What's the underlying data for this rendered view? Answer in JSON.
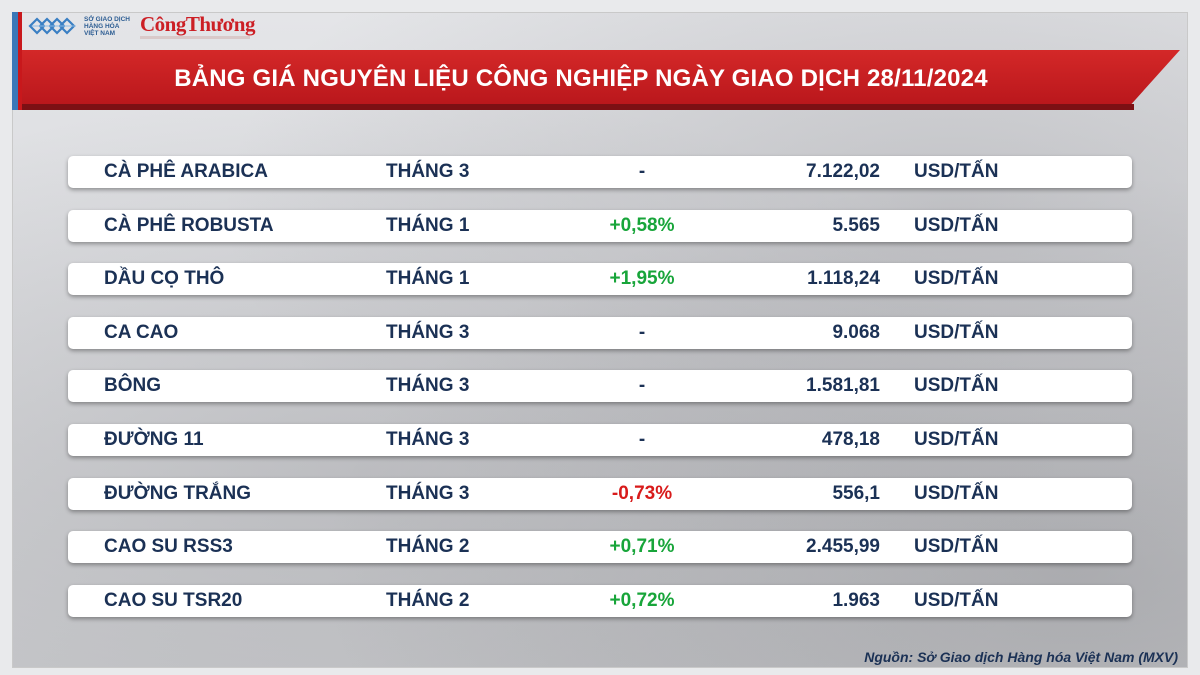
{
  "logos": {
    "exchange_name": "SỞ GIAO DỊCH HÀNG HÓA VIỆT NAM",
    "exchange_line1": "SỞ GIAO DỊCH",
    "exchange_line2": "HÀNG HÓA",
    "exchange_line3": "VIỆT NAM",
    "newspaper": "CôngThương",
    "exchange_icon": "mxv-logo-icon",
    "brand_red": "#cc1f25",
    "brand_blue": "#2d5d93"
  },
  "title": "BẢNG GIÁ NGUYÊN LIỆU CÔNG NGHIỆP NGÀY GIAO DỊCH 28/11/2024",
  "colors": {
    "banner": "#c8181c",
    "positive": "#18a53a",
    "negative": "#d81b1b",
    "text": "#1b3155"
  },
  "rows": [
    {
      "name": "CÀ PHÊ ARABICA",
      "month": "THÁNG 3",
      "change": "-",
      "direction": "neutral",
      "price": "7.122,02",
      "unit": "USD/TẤN"
    },
    {
      "name": "CÀ PHÊ ROBUSTA",
      "month": "THÁNG 1",
      "change": "+0,58%",
      "direction": "up",
      "price": "5.565",
      "unit": "USD/TẤN"
    },
    {
      "name": "DẦU CỌ THÔ",
      "month": "THÁNG 1",
      "change": "+1,95%",
      "direction": "up",
      "price": "1.118,24",
      "unit": "USD/TẤN"
    },
    {
      "name": "CA CAO",
      "month": "THÁNG 3",
      "change": "-",
      "direction": "neutral",
      "price": "9.068",
      "unit": "USD/TẤN"
    },
    {
      "name": "BÔNG",
      "month": "THÁNG 3",
      "change": "-",
      "direction": "neutral",
      "price": "1.581,81",
      "unit": "USD/TẤN"
    },
    {
      "name": "ĐƯỜNG 11",
      "month": "THÁNG 3",
      "change": "-",
      "direction": "neutral",
      "price": "478,18",
      "unit": "USD/TẤN"
    },
    {
      "name": "ĐƯỜNG TRẮNG",
      "month": "THÁNG 3",
      "change": "-0,73%",
      "direction": "down",
      "price": "556,1",
      "unit": "USD/TẤN"
    },
    {
      "name": "CAO SU RSS3",
      "month": "THÁNG 2",
      "change": "+0,71%",
      "direction": "up",
      "price": "2.455,99",
      "unit": "USD/TẤN"
    },
    {
      "name": "CAO SU TSR20",
      "month": "THÁNG 2",
      "change": "+0,72%",
      "direction": "up",
      "price": "1.963",
      "unit": "USD/TẤN"
    }
  ],
  "source": "Nguồn: Sở Giao dịch Hàng hóa Việt Nam (MXV)"
}
